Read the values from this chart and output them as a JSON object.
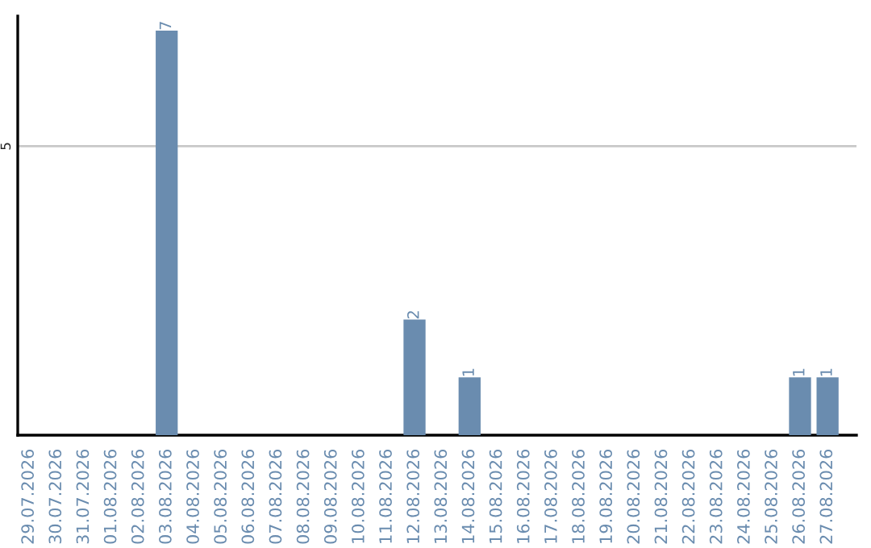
{
  "chart_data": {
    "type": "bar",
    "categories": [
      "29.07.2026",
      "30.07.2026",
      "31.07.2026",
      "01.08.2026",
      "02.08.2026",
      "03.08.2026",
      "04.08.2026",
      "05.08.2026",
      "06.08.2026",
      "07.08.2026",
      "08.08.2026",
      "09.08.2026",
      "10.08.2026",
      "11.08.2026",
      "12.08.2026",
      "13.08.2026",
      "14.08.2026",
      "15.08.2026",
      "16.08.2026",
      "17.08.2026",
      "18.08.2026",
      "19.08.2026",
      "20.08.2026",
      "21.08.2026",
      "22.08.2026",
      "23.08.2026",
      "24.08.2026",
      "25.08.2026",
      "26.08.2026",
      "27.08.2026"
    ],
    "values": [
      0,
      0,
      0,
      0,
      0,
      7,
      0,
      0,
      0,
      0,
      0,
      0,
      0,
      0,
      2,
      0,
      1,
      0,
      0,
      0,
      0,
      0,
      0,
      0,
      0,
      0,
      0,
      0,
      1,
      1
    ],
    "value_labels": [
      null,
      null,
      null,
      null,
      null,
      "7",
      null,
      null,
      null,
      null,
      null,
      null,
      null,
      null,
      "2",
      null,
      "1",
      null,
      null,
      null,
      null,
      null,
      null,
      null,
      null,
      null,
      null,
      null,
      "1",
      "1"
    ],
    "color": "#6a8caf",
    "ylim": [
      0,
      7.25
    ],
    "yticks": [
      5
    ],
    "grid": "y",
    "legend": false
  }
}
